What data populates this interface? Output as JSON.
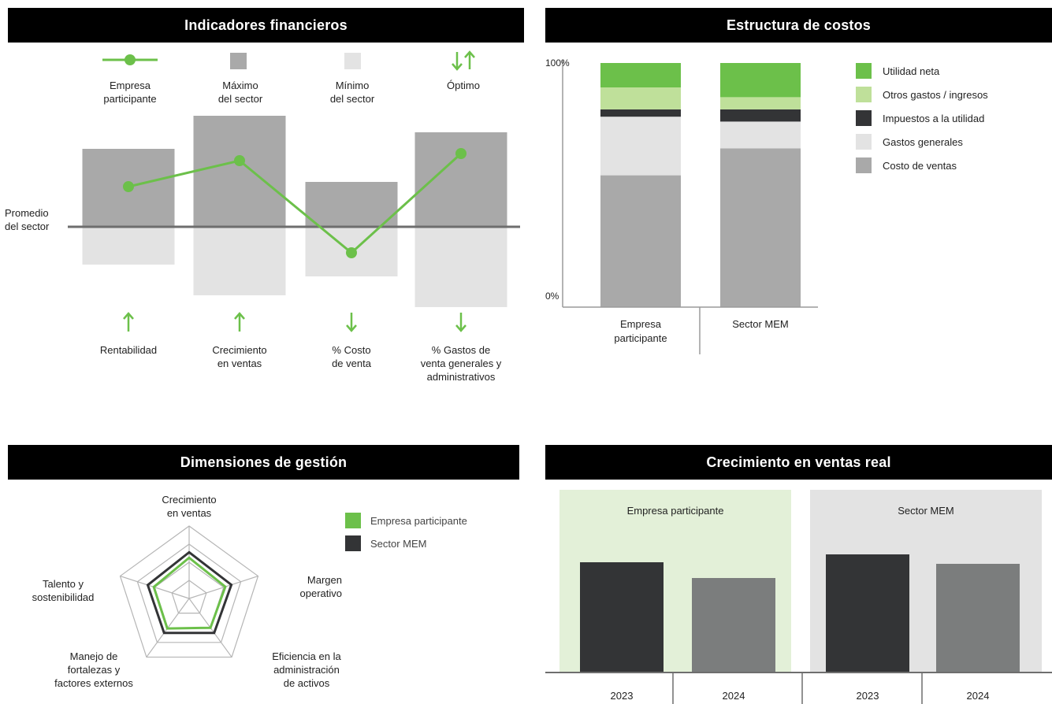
{
  "colors": {
    "green": "#6cc04a",
    "light_green": "#bfe09a",
    "dark": "#333436",
    "gray_bar": "#a9a9a9",
    "light_gray": "#e3e3e3",
    "mid_gray": "#7b7d7d",
    "green_panel_bg": "#e3f0d8",
    "gray_panel_bg": "#e3e3e3"
  },
  "headers": {
    "financial": "Indicadores financieros",
    "costs": "Estructura de costos",
    "dimensions": "Dimensiones de gestión",
    "growth": "Crecimiento en ventas real"
  },
  "financial_legend": {
    "company": "Empresa\nparticipante",
    "max": "Máximo\ndel sector",
    "min": "Mínimo\ndel sector",
    "optimal": "Óptimo"
  },
  "financial_avg_label": "Promedio\ndel sector",
  "financial_indicators": [
    {
      "label": "Rentabilidad",
      "arrow": "up"
    },
    {
      "label": "Crecimiento\nen ventas",
      "arrow": "up"
    },
    {
      "label": "% Costo\nde venta",
      "arrow": "down"
    },
    {
      "label": "% Gastos de\nventa generales y\nadministrativos",
      "arrow": "down"
    }
  ],
  "cost_legend": [
    "Utilidad neta",
    "Otros gastos / ingresos",
    "Impuestos a la utilidad",
    "Gastos generales",
    "Costo de ventas"
  ],
  "dimensions_legend": [
    "Empresa participante",
    "Sector MEM"
  ],
  "dimensions_axes": [
    "Crecimiento\nen ventas",
    "Margen\noperativo",
    "Eficiencia en la\nadministración\nde activos",
    "Manejo de\nfortalezas y\nfactores externos",
    "Talento y\nsostenibilidad"
  ],
  "growth_panels": [
    "Empresa participante",
    "Sector MEM"
  ],
  "chart_data": [
    {
      "type": "bar",
      "title": "Indicadores financieros",
      "categories": [
        "Rentabilidad",
        "Crecimiento en ventas",
        "% Costo de venta",
        "% Gastos de venta generales y administrativos"
      ],
      "sector_max": [
        3.3,
        4.7,
        1.9,
        4.0
      ],
      "sector_min": [
        -1.6,
        -2.9,
        -2.1,
        -3.4
      ],
      "series": [
        {
          "name": "Empresa participante",
          "values": [
            1.7,
            2.8,
            -1.1,
            3.1
          ]
        }
      ]
    },
    {
      "type": "bar",
      "title": "Estructura de costos",
      "ylim_labels": [
        "0%",
        "100%"
      ],
      "categories": [
        "Empresa\nparticipante",
        "Sector MEM"
      ],
      "series": [
        {
          "name": "Costo de ventas",
          "values": [
            54,
            65
          ]
        },
        {
          "name": "Gastos generales",
          "values": [
            24,
            11
          ]
        },
        {
          "name": "Impuestos a la utilidad",
          "values": [
            3,
            5
          ]
        },
        {
          "name": "Otros gastos / ingresos",
          "values": [
            9,
            5
          ]
        },
        {
          "name": "Utilidad neta",
          "values": [
            10,
            14
          ]
        }
      ]
    },
    {
      "type": "radar",
      "title": "Dimensiones de gestión",
      "categories": [
        "Crecimiento en ventas",
        "Margen operativo",
        "Eficiencia en la administración de activos",
        "Manejo de fortalezas y factores externos",
        "Talento y sostenibilidad"
      ],
      "series": [
        {
          "name": "Empresa participante",
          "values": [
            2.25,
            2.1,
            2.0,
            2.05,
            2.05
          ]
        },
        {
          "name": "Sector MEM",
          "values": [
            2.55,
            2.45,
            2.35,
            2.35,
            2.4
          ]
        }
      ]
    },
    {
      "type": "bar",
      "title": "Crecimiento en ventas real",
      "categories": [
        "2023",
        "2024",
        "2023",
        "2024"
      ],
      "groups": [
        "Empresa participante",
        "Sector MEM"
      ],
      "values": [
        1.4,
        1.2,
        1.5,
        1.38
      ]
    }
  ]
}
